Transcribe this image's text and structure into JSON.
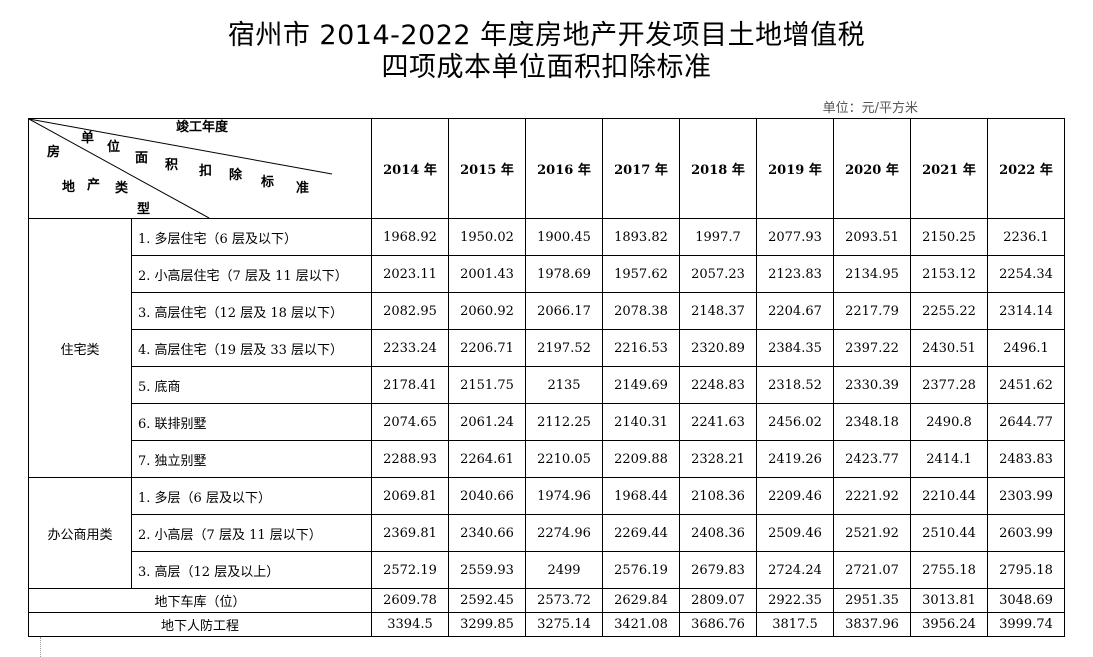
{
  "title_line1": "宿州市 2014-2022 年度房地产开发项目土地增值税",
  "title_line2": "四项成本单位面积扣除标准",
  "unit": "单位：元/平方米",
  "header": {
    "completion_year": "竣工年度",
    "chars_deduction": [
      "单",
      "位",
      "面",
      "积",
      "扣",
      "除",
      "标",
      "准"
    ],
    "chars_type": [
      "房",
      "地",
      "产",
      "类",
      "型"
    ],
    "years": [
      "2014 年",
      "2015 年",
      "2016 年",
      "2017 年",
      "2018 年",
      "2019 年",
      "2020 年",
      "2021 年",
      "2022 年"
    ]
  },
  "groups": [
    {
      "name": "住宅类",
      "rows": [
        {
          "label": "1. 多层住宅（6 层及以下）",
          "values": [
            "1968.92",
            "1950.02",
            "1900.45",
            "1893.82",
            "1997.7",
            "2077.93",
            "2093.51",
            "2150.25",
            "2236.1"
          ]
        },
        {
          "label": "2. 小高层住宅（7 层及 11 层以下）",
          "values": [
            "2023.11",
            "2001.43",
            "1978.69",
            "1957.62",
            "2057.23",
            "2123.83",
            "2134.95",
            "2153.12",
            "2254.34"
          ]
        },
        {
          "label": "3. 高层住宅（12 层及 18 层以下）",
          "values": [
            "2082.95",
            "2060.92",
            "2066.17",
            "2078.38",
            "2148.37",
            "2204.67",
            "2217.79",
            "2255.22",
            "2314.14"
          ]
        },
        {
          "label": "4. 高层住宅（19 层及 33 层以下）",
          "values": [
            "2233.24",
            "2206.71",
            "2197.52",
            "2216.53",
            "2320.89",
            "2384.35",
            "2397.22",
            "2430.51",
            "2496.1"
          ]
        },
        {
          "label": "5. 底商",
          "values": [
            "2178.41",
            "2151.75",
            "2135",
            "2149.69",
            "2248.83",
            "2318.52",
            "2330.39",
            "2377.28",
            "2451.62"
          ]
        },
        {
          "label": "6. 联排别墅",
          "values": [
            "2074.65",
            "2061.24",
            "2112.25",
            "2140.31",
            "2241.63",
            "2456.02",
            "2348.18",
            "2490.8",
            "2644.77"
          ]
        },
        {
          "label": "7. 独立别墅",
          "values": [
            "2288.93",
            "2264.61",
            "2210.05",
            "2209.88",
            "2328.21",
            "2419.26",
            "2423.77",
            "2414.1",
            "2483.83"
          ]
        }
      ]
    },
    {
      "name": "办公商用类",
      "rows": [
        {
          "label": "1. 多层（6 层及以下）",
          "values": [
            "2069.81",
            "2040.66",
            "1974.96",
            "1968.44",
            "2108.36",
            "2209.46",
            "2221.92",
            "2210.44",
            "2303.99"
          ]
        },
        {
          "label": "2. 小高层（7 层及 11 层以下）",
          "values": [
            "2369.81",
            "2340.66",
            "2274.96",
            "2269.44",
            "2408.36",
            "2509.46",
            "2521.92",
            "2510.44",
            "2603.99"
          ]
        },
        {
          "label": "3. 高层（12 层及以上）",
          "values": [
            "2572.19",
            "2559.93",
            "2499",
            "2576.19",
            "2679.83",
            "2724.24",
            "2721.07",
            "2755.18",
            "2795.18"
          ]
        }
      ]
    }
  ],
  "extra_rows": [
    {
      "label": "地下车库（位）",
      "values": [
        "2609.78",
        "2592.45",
        "2573.72",
        "2629.84",
        "2809.07",
        "2922.35",
        "2951.35",
        "3013.81",
        "3048.69"
      ]
    },
    {
      "label": "地下人防工程",
      "values": [
        "3394.5",
        "3299.85",
        "3275.14",
        "3421.08",
        "3686.76",
        "3817.5",
        "3837.96",
        "3956.24",
        "3999.74"
      ]
    }
  ]
}
